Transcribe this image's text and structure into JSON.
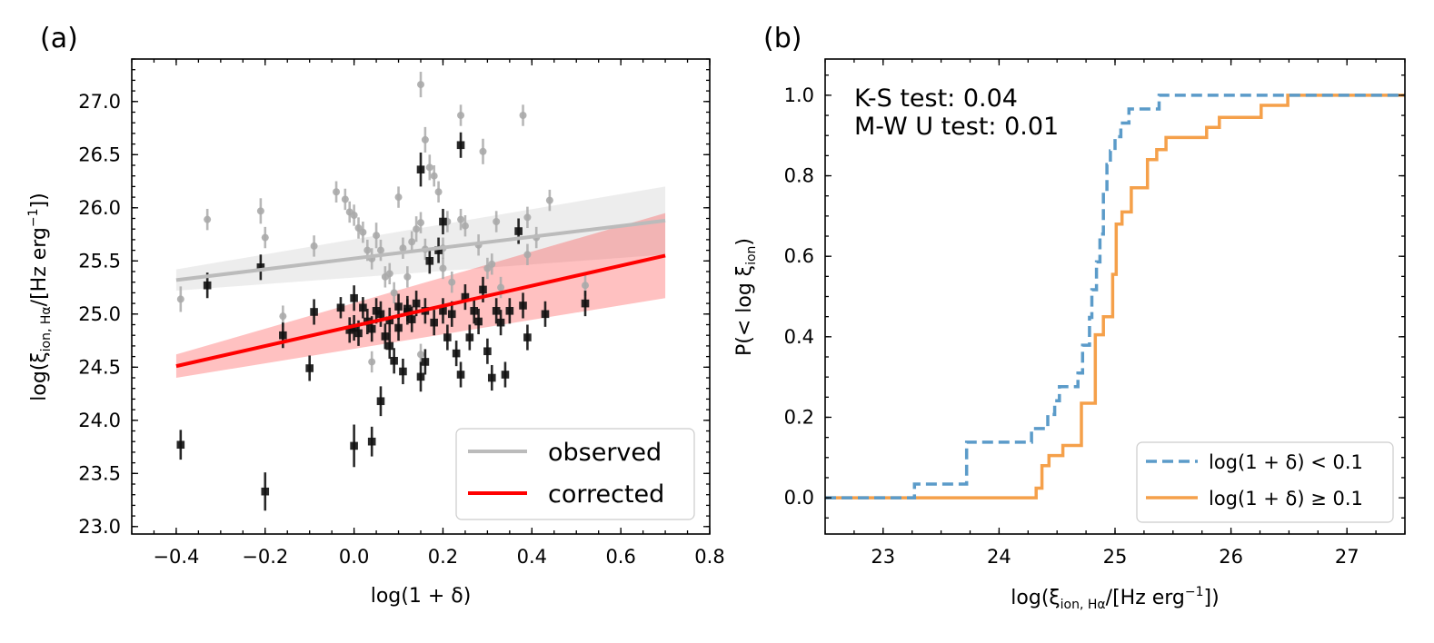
{
  "chart_data": [
    {
      "type": "scatter",
      "panel_label": "(a)",
      "xlabel": "log(1 + δ)",
      "ylabel_prefix": "log(ξ",
      "ylabel_sub": "ion, Hα",
      "ylabel_mid": "/[Hz erg",
      "ylabel_sup": "−1",
      "ylabel_suffix": "])",
      "xlim": [
        -0.5,
        0.8
      ],
      "ylim": [
        22.93,
        27.4
      ],
      "xticks": [
        -0.4,
        -0.2,
        0.0,
        0.2,
        0.4,
        0.6,
        0.8
      ],
      "xtick_labels": [
        "−0.4",
        "−0.2",
        "0.0",
        "0.2",
        "0.4",
        "0.6",
        "0.8"
      ],
      "yticks": [
        23.0,
        23.5,
        24.0,
        24.5,
        25.0,
        25.5,
        26.0,
        26.5,
        27.0
      ],
      "ytick_labels": [
        "23.0",
        "23.5",
        "24.0",
        "24.5",
        "25.0",
        "25.5",
        "26.0",
        "26.5",
        "27.0"
      ],
      "legend": {
        "placement": "lower-right",
        "entries": [
          "observed",
          "corrected"
        ]
      },
      "series": [
        {
          "name": "observed",
          "marker": "circle",
          "color": "#aaaaaa",
          "fit": {
            "x": [
              -0.4,
              0.7
            ],
            "y": [
              25.32,
              25.88
            ],
            "band_upper": [
              25.42,
              26.2
            ],
            "band_lower": [
              25.22,
              25.56
            ]
          },
          "points": [
            [
              -0.39,
              25.14,
              0.12
            ],
            [
              -0.33,
              25.89,
              0.1
            ],
            [
              -0.21,
              25.97,
              0.12
            ],
            [
              -0.2,
              25.72,
              0.1
            ],
            [
              -0.16,
              24.98,
              0.1
            ],
            [
              -0.09,
              25.64,
              0.1
            ],
            [
              -0.04,
              26.15,
              0.1
            ],
            [
              -0.02,
              26.08,
              0.1
            ],
            [
              -0.01,
              25.96,
              0.1
            ],
            [
              0.0,
              25.93,
              0.1
            ],
            [
              0.01,
              25.81,
              0.1
            ],
            [
              0.02,
              25.77,
              0.1
            ],
            [
              0.03,
              25.6,
              0.1
            ],
            [
              0.04,
              25.52,
              0.1
            ],
            [
              0.05,
              25.74,
              0.12
            ],
            [
              0.06,
              25.6,
              0.1
            ],
            [
              0.07,
              25.35,
              0.1
            ],
            [
              0.08,
              25.38,
              0.1
            ],
            [
              0.09,
              25.2,
              0.1
            ],
            [
              0.1,
              26.1,
              0.1
            ],
            [
              0.11,
              25.62,
              0.1
            ],
            [
              0.12,
              25.35,
              0.1
            ],
            [
              0.13,
              25.68,
              0.1
            ],
            [
              0.14,
              25.8,
              0.12
            ],
            [
              0.15,
              25.86,
              0.1
            ],
            [
              0.15,
              27.16,
              0.12
            ],
            [
              0.16,
              26.64,
              0.12
            ],
            [
              0.16,
              25.61,
              0.1
            ],
            [
              0.17,
              26.38,
              0.12
            ],
            [
              0.18,
              26.3,
              0.1
            ],
            [
              0.19,
              26.15,
              0.1
            ],
            [
              0.2,
              25.62,
              0.1
            ],
            [
              0.2,
              25.43,
              0.1
            ],
            [
              0.21,
              25.87,
              0.1
            ],
            [
              0.22,
              25.3,
              0.1
            ],
            [
              0.24,
              25.89,
              0.1
            ],
            [
              0.24,
              26.87,
              0.1
            ],
            [
              0.25,
              25.83,
              0.1
            ],
            [
              0.28,
              25.65,
              0.1
            ],
            [
              0.29,
              26.53,
              0.12
            ],
            [
              0.3,
              25.43,
              0.1
            ],
            [
              0.31,
              25.47,
              0.1
            ],
            [
              0.32,
              25.87,
              0.1
            ],
            [
              0.33,
              25.25,
              0.1
            ],
            [
              0.38,
              26.87,
              0.1
            ],
            [
              0.39,
              25.91,
              0.1
            ],
            [
              0.39,
              25.56,
              0.1
            ],
            [
              0.41,
              25.72,
              0.1
            ],
            [
              0.44,
              26.07,
              0.1
            ],
            [
              0.52,
              25.27,
              0.1
            ],
            [
              0.04,
              24.55,
              0.1
            ],
            [
              0.15,
              24.62,
              0.1
            ]
          ]
        },
        {
          "name": "corrected",
          "marker": "square",
          "color": "#111111",
          "fit": {
            "x": [
              -0.4,
              0.7
            ],
            "y": [
              24.51,
              25.55
            ],
            "band_upper": [
              24.62,
              25.95
            ],
            "band_lower": [
              24.4,
              25.15
            ]
          },
          "points": [
            [
              -0.39,
              23.77,
              0.14
            ],
            [
              -0.33,
              25.27,
              0.12
            ],
            [
              -0.21,
              25.44,
              0.12
            ],
            [
              -0.2,
              23.33,
              0.18
            ],
            [
              -0.16,
              24.8,
              0.12
            ],
            [
              -0.1,
              24.49,
              0.12
            ],
            [
              -0.09,
              25.02,
              0.12
            ],
            [
              -0.03,
              25.06,
              0.1
            ],
            [
              -0.01,
              24.85,
              0.12
            ],
            [
              0.0,
              25.15,
              0.12
            ],
            [
              0.0,
              23.76,
              0.2
            ],
            [
              0.0,
              24.87,
              0.12
            ],
            [
              0.01,
              24.82,
              0.12
            ],
            [
              0.02,
              25.06,
              0.1
            ],
            [
              0.03,
              24.93,
              0.12
            ],
            [
              0.04,
              24.86,
              0.12
            ],
            [
              0.04,
              23.8,
              0.14
            ],
            [
              0.05,
              25.03,
              0.12
            ],
            [
              0.06,
              24.18,
              0.14
            ],
            [
              0.06,
              25.0,
              0.12
            ],
            [
              0.07,
              24.79,
              0.12
            ],
            [
              0.08,
              24.7,
              0.12
            ],
            [
              0.08,
              24.94,
              0.12
            ],
            [
              0.09,
              24.56,
              0.12
            ],
            [
              0.1,
              25.07,
              0.12
            ],
            [
              0.1,
              24.87,
              0.12
            ],
            [
              0.11,
              24.46,
              0.12
            ],
            [
              0.12,
              25.02,
              0.12
            ],
            [
              0.12,
              25.05,
              0.12
            ],
            [
              0.13,
              24.95,
              0.12
            ],
            [
              0.14,
              25.1,
              0.12
            ],
            [
              0.15,
              24.41,
              0.14
            ],
            [
              0.15,
              26.36,
              0.16
            ],
            [
              0.16,
              25.03,
              0.12
            ],
            [
              0.16,
              24.55,
              0.12
            ],
            [
              0.17,
              25.5,
              0.12
            ],
            [
              0.18,
              24.92,
              0.12
            ],
            [
              0.19,
              25.6,
              0.12
            ],
            [
              0.2,
              25.87,
              0.12
            ],
            [
              0.2,
              25.03,
              0.12
            ],
            [
              0.21,
              24.78,
              0.12
            ],
            [
              0.22,
              25.0,
              0.12
            ],
            [
              0.23,
              24.63,
              0.12
            ],
            [
              0.24,
              24.43,
              0.12
            ],
            [
              0.24,
              26.59,
              0.12
            ],
            [
              0.25,
              25.16,
              0.12
            ],
            [
              0.26,
              24.78,
              0.12
            ],
            [
              0.27,
              25.03,
              0.12
            ],
            [
              0.28,
              24.93,
              0.12
            ],
            [
              0.29,
              25.23,
              0.12
            ],
            [
              0.3,
              24.65,
              0.12
            ],
            [
              0.31,
              24.4,
              0.12
            ],
            [
              0.32,
              25.03,
              0.12
            ],
            [
              0.33,
              24.92,
              0.12
            ],
            [
              0.34,
              24.43,
              0.12
            ],
            [
              0.35,
              25.03,
              0.12
            ],
            [
              0.37,
              25.78,
              0.12
            ],
            [
              0.38,
              25.08,
              0.12
            ],
            [
              0.39,
              24.78,
              0.12
            ],
            [
              0.43,
              25.0,
              0.12
            ],
            [
              0.52,
              25.1,
              0.12
            ]
          ]
        }
      ]
    },
    {
      "type": "line",
      "subtype": "step-cdf",
      "panel_label": "(b)",
      "xlabel_prefix": "log(ξ",
      "xlabel_sub": "ion, Hα",
      "xlabel_mid": "/[Hz erg",
      "xlabel_sup": "−1",
      "xlabel_suffix": "])",
      "ylabel_prefix": "P(< log ξ",
      "ylabel_sub": "ion",
      "ylabel_suffix": ")",
      "xlim": [
        22.5,
        27.5
      ],
      "ylim": [
        -0.09,
        1.09
      ],
      "xticks": [
        23,
        24,
        25,
        26,
        27
      ],
      "xtick_labels": [
        "23",
        "24",
        "25",
        "26",
        "27"
      ],
      "yticks": [
        0.0,
        0.2,
        0.4,
        0.6,
        0.8,
        1.0
      ],
      "ytick_labels": [
        "0.0",
        "0.2",
        "0.4",
        "0.6",
        "0.8",
        "1.0"
      ],
      "annotations": [
        "K-S test: 0.04",
        "M-W U test: 0.01"
      ],
      "legend": {
        "placement": "lower-right",
        "entries": [
          "log(1 + δ) < 0.1",
          "log(1 + δ) ≥ 0.1"
        ]
      },
      "series": [
        {
          "name": "log(1 + δ) < 0.1",
          "style": "dashed",
          "color": "#5b9bc9",
          "steps": [
            [
              22.5,
              0.0
            ],
            [
              23.27,
              0.0
            ],
            [
              23.27,
              0.034
            ],
            [
              23.72,
              0.034
            ],
            [
              23.72,
              0.138
            ],
            [
              24.28,
              0.138
            ],
            [
              24.28,
              0.172
            ],
            [
              24.42,
              0.172
            ],
            [
              24.42,
              0.207
            ],
            [
              24.48,
              0.207
            ],
            [
              24.48,
              0.241
            ],
            [
              24.52,
              0.241
            ],
            [
              24.52,
              0.276
            ],
            [
              24.68,
              0.276
            ],
            [
              24.68,
              0.31
            ],
            [
              24.72,
              0.31
            ],
            [
              24.72,
              0.379
            ],
            [
              24.78,
              0.379
            ],
            [
              24.78,
              0.448
            ],
            [
              24.8,
              0.448
            ],
            [
              24.8,
              0.517
            ],
            [
              24.84,
              0.517
            ],
            [
              24.84,
              0.586
            ],
            [
              24.87,
              0.586
            ],
            [
              24.87,
              0.655
            ],
            [
              24.9,
              0.655
            ],
            [
              24.9,
              0.759
            ],
            [
              24.93,
              0.759
            ],
            [
              24.93,
              0.828
            ],
            [
              24.96,
              0.828
            ],
            [
              24.96,
              0.862
            ],
            [
              25.0,
              0.862
            ],
            [
              25.0,
              0.897
            ],
            [
              25.05,
              0.897
            ],
            [
              25.05,
              0.931
            ],
            [
              25.12,
              0.931
            ],
            [
              25.12,
              0.966
            ],
            [
              25.38,
              0.966
            ],
            [
              25.38,
              1.0
            ],
            [
              27.5,
              1.0
            ]
          ]
        },
        {
          "name": "log(1 + δ) ≥ 0.1",
          "style": "solid",
          "color": "#f5a04a",
          "steps": [
            [
              22.5,
              0.0
            ],
            [
              24.32,
              0.0
            ],
            [
              24.32,
              0.024
            ],
            [
              24.37,
              0.024
            ],
            [
              24.37,
              0.08
            ],
            [
              24.43,
              0.08
            ],
            [
              24.43,
              0.105
            ],
            [
              24.55,
              0.105
            ],
            [
              24.55,
              0.13
            ],
            [
              24.71,
              0.13
            ],
            [
              24.71,
              0.235
            ],
            [
              24.83,
              0.235
            ],
            [
              24.83,
              0.405
            ],
            [
              24.9,
              0.405
            ],
            [
              24.9,
              0.45
            ],
            [
              24.98,
              0.45
            ],
            [
              24.98,
              0.555
            ],
            [
              25.01,
              0.555
            ],
            [
              25.01,
              0.68
            ],
            [
              25.06,
              0.68
            ],
            [
              25.06,
              0.71
            ],
            [
              25.14,
              0.71
            ],
            [
              25.14,
              0.77
            ],
            [
              25.28,
              0.77
            ],
            [
              25.28,
              0.84
            ],
            [
              25.36,
              0.84
            ],
            [
              25.36,
              0.865
            ],
            [
              25.44,
              0.865
            ],
            [
              25.44,
              0.895
            ],
            [
              25.79,
              0.895
            ],
            [
              25.79,
              0.92
            ],
            [
              25.9,
              0.92
            ],
            [
              25.9,
              0.945
            ],
            [
              26.26,
              0.945
            ],
            [
              26.26,
              0.975
            ],
            [
              26.49,
              0.975
            ],
            [
              26.49,
              1.0
            ],
            [
              27.5,
              1.0
            ]
          ]
        }
      ]
    }
  ]
}
